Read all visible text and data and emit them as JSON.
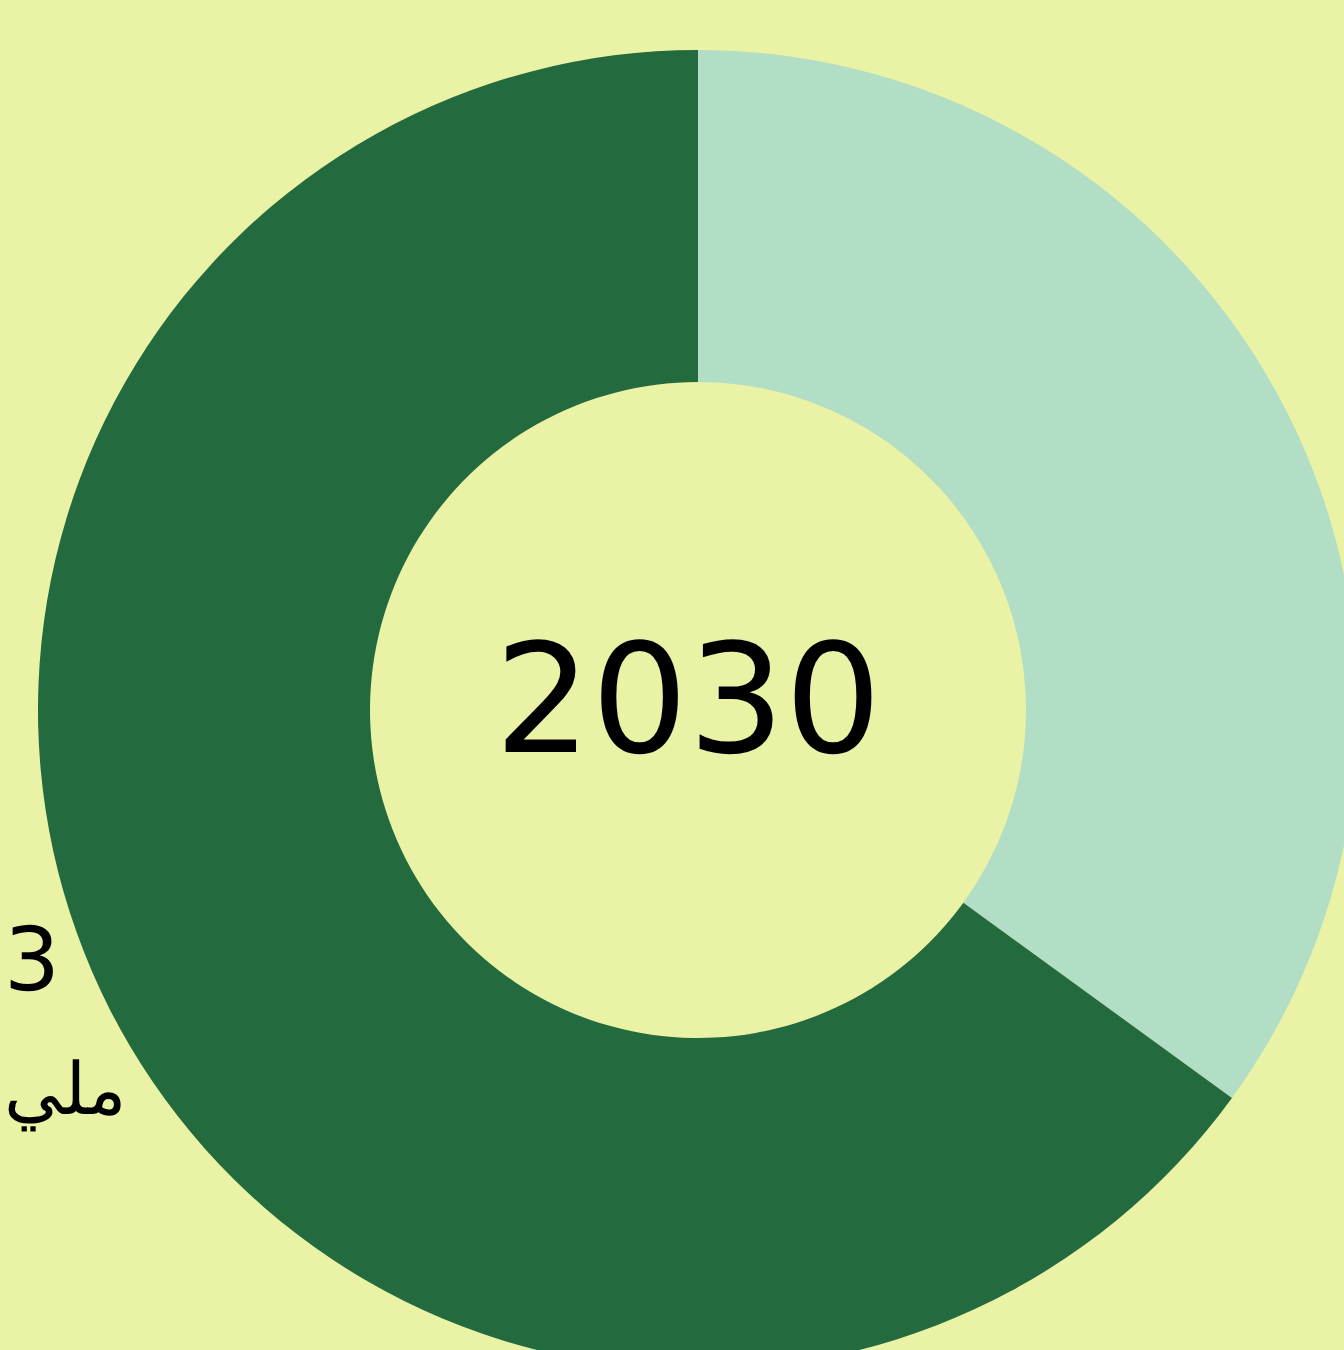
{
  "chart_data": {
    "type": "donut",
    "title": "2030",
    "categories": [
      null,
      null
    ],
    "values": [
      35,
      65
    ],
    "colors": [
      "#b1dec4",
      "#236a3f"
    ],
    "annotations": [
      "3",
      "ملي"
    ]
  }
}
